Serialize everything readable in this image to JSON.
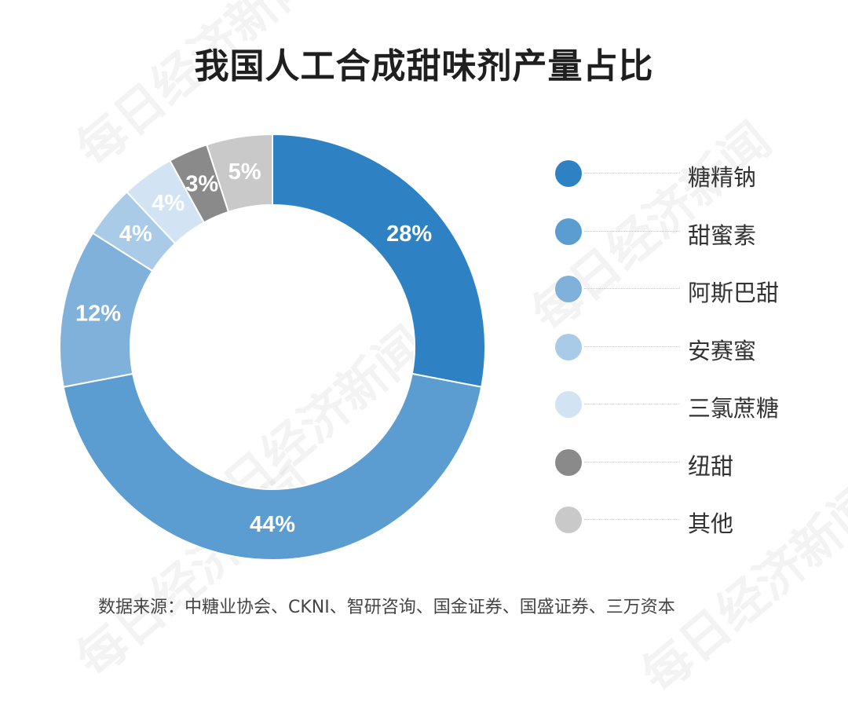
{
  "title": "我国人工合成甜味剂产量占比",
  "watermark": "每日经济新闻",
  "source": "数据来源：中糖业协会、CKNI、智研咨询、国金证券、国盛证券、三万资本",
  "chart_data": {
    "type": "pie",
    "variant": "donut",
    "title": "我国人工合成甜味剂产量占比",
    "legend_position": "right",
    "start_angle_deg": 0,
    "direction": "clockwise",
    "slices": [
      {
        "label": "糖精钠",
        "value": 28,
        "display": "28%",
        "color": "#2e82c4"
      },
      {
        "label": "甜蜜素",
        "value": 44,
        "display": "44%",
        "color": "#5b9dd1"
      },
      {
        "label": "阿斯巴甜",
        "value": 12,
        "display": "12%",
        "color": "#7fb1db"
      },
      {
        "label": "安赛蜜",
        "value": 4,
        "display": "4%",
        "color": "#a9cbe8"
      },
      {
        "label": "三氯蔗糖",
        "value": 4,
        "display": "4%",
        "color": "#d2e4f3"
      },
      {
        "label": "纽甜",
        "value": 3,
        "display": "3%",
        "color": "#8a8a8a"
      },
      {
        "label": "其他",
        "value": 5,
        "display": "5%",
        "color": "#c9c9c9"
      }
    ]
  }
}
